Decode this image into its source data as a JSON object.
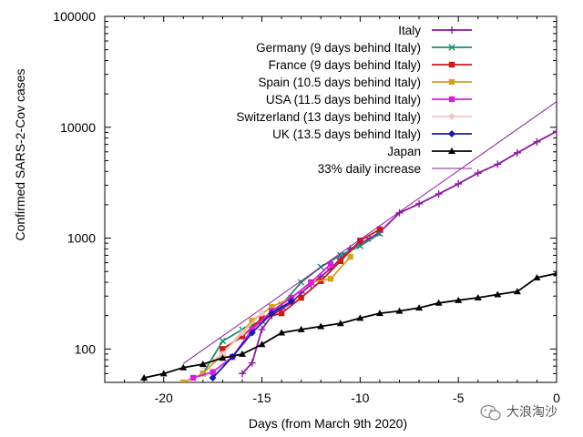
{
  "chart_data": {
    "type": "line",
    "xlabel": "Days (from March 9th 2020)",
    "ylabel": "Confirmed SARS-2-Cov cases",
    "xlim": [
      -23,
      0
    ],
    "ylim": [
      50,
      100000
    ],
    "y_scale": "log",
    "x_ticks": [
      -20,
      -15,
      -10,
      -5,
      0
    ],
    "x_tick_labels": [
      "-20",
      "-15",
      "-10",
      "-5",
      "0"
    ],
    "y_ticks": [
      100,
      1000,
      10000,
      100000
    ],
    "y_tick_labels": [
      "100",
      "1000",
      "10000",
      "100000"
    ],
    "grid": false,
    "legend_position": "top-right",
    "series": [
      {
        "name": "Italy",
        "color": "#8b1a9e",
        "marker": "plus",
        "x": [
          -16,
          -15.5,
          -15,
          -14.5,
          -14,
          -13.5,
          -13,
          -12.5,
          -12,
          -11.5,
          -11,
          -10.5,
          -10,
          -9.5,
          -9,
          -8,
          -7,
          -6,
          -5,
          -4,
          -3,
          -2,
          -1,
          0
        ],
        "y": [
          60,
          75,
          150,
          200,
          230,
          260,
          320,
          380,
          450,
          530,
          650,
          800,
          890,
          1000,
          1130,
          1690,
          2040,
          2500,
          3090,
          3860,
          4640,
          5880,
          7380,
          9170
        ]
      },
      {
        "name": "Germany (9 days behind Italy)",
        "color": "#1f8a70",
        "marker": "x",
        "x": [
          -18,
          -17,
          -16,
          -15,
          -14,
          -13,
          -12,
          -11,
          -10,
          -9
        ],
        "y": [
          60,
          118,
          150,
          180,
          250,
          400,
          550,
          700,
          850,
          1100
        ]
      },
      {
        "name": "France (9 days behind Italy)",
        "color": "#cc1a1a",
        "marker": "square",
        "x": [
          -17,
          -16,
          -15,
          -14,
          -13,
          -12,
          -11,
          -10,
          -9
        ],
        "y": [
          100,
          130,
          190,
          210,
          290,
          410,
          620,
          950,
          1200
        ]
      },
      {
        "name": "Spain (10.5 days behind Italy)",
        "color": "#d4a020",
        "marker": "square",
        "x": [
          -19,
          -18,
          -17,
          -15.5,
          -14.5,
          -13.5,
          -12.5,
          -11.5,
          -10.5
        ],
        "y": [
          50,
          60,
          90,
          180,
          240,
          290,
          400,
          430,
          680
        ]
      },
      {
        "name": "USA (11.5 days behind Italy)",
        "color": "#d81fd8",
        "marker": "square",
        "x": [
          -18.5,
          -17.5,
          -16.5,
          -15.5,
          -14.5,
          -13.5,
          -12.5,
          -11.5
        ],
        "y": [
          55,
          62,
          85,
          150,
          220,
          290,
          400,
          580
        ]
      },
      {
        "name": "Switzerland (13 days behind Italy)",
        "color": "#f0c8c8",
        "marker": "diamond",
        "x": [
          -18,
          -17,
          -16,
          -15
        ],
        "y": [
          70,
          90,
          140,
          210
        ]
      },
      {
        "name": "UK (13.5 days behind Italy)",
        "color": "#1a1aa8",
        "marker": "diamond",
        "x": [
          -17.5,
          -16.5,
          -15.5,
          -14.5,
          -13.5
        ],
        "y": [
          55,
          85,
          140,
          210,
          270
        ]
      },
      {
        "name": "Japan",
        "color": "#000000",
        "marker": "triangle",
        "x": [
          -21,
          -20,
          -19,
          -18,
          -17,
          -16,
          -15,
          -14,
          -13,
          -12,
          -11,
          -10,
          -9,
          -8,
          -7,
          -6,
          -5,
          -4,
          -3,
          -2,
          -1,
          0
        ],
        "y": [
          55,
          60,
          68,
          73,
          83,
          90,
          110,
          140,
          150,
          160,
          170,
          190,
          210,
          220,
          235,
          260,
          275,
          290,
          310,
          330,
          440,
          480
        ]
      },
      {
        "name": "33% daily increase",
        "color": "#8b1a9e",
        "marker": "none",
        "x": [
          -19,
          0
        ],
        "y": [
          74,
          17000
        ]
      }
    ]
  },
  "watermark": {
    "icon": "wechat-icon",
    "text": "大浪淘沙"
  }
}
